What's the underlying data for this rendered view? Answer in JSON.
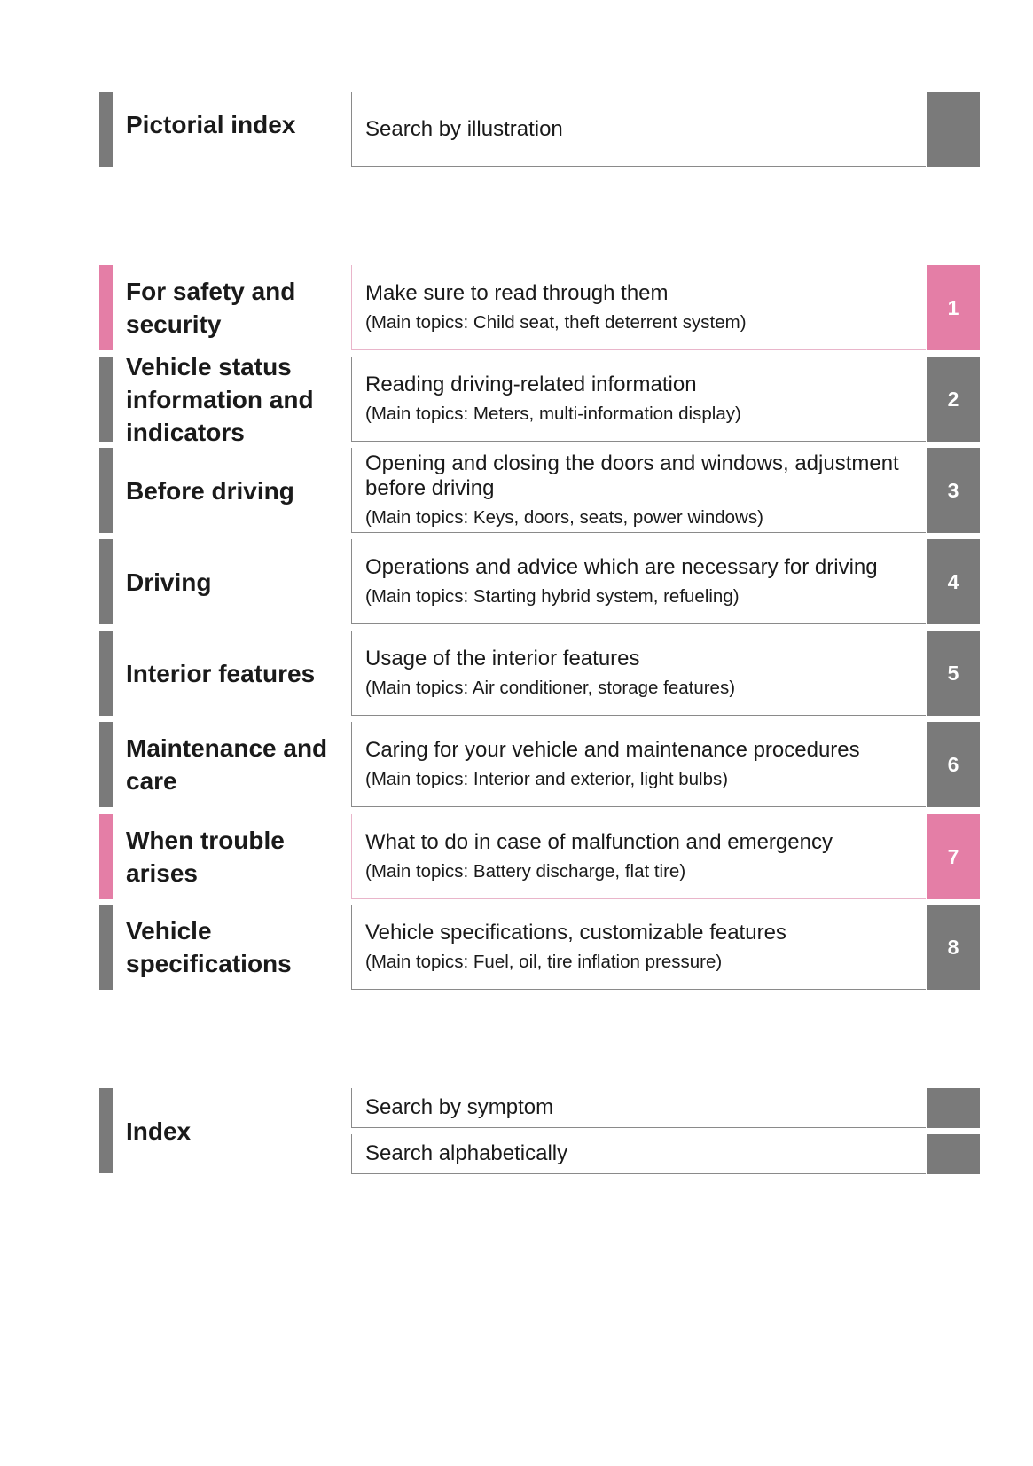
{
  "colors": {
    "gray": "#7a7a7a",
    "pink": "#e47ea6"
  },
  "pictorial": {
    "title": "Pictorial index",
    "description": "Search by illustration"
  },
  "chapters": [
    {
      "number": "1",
      "title": "For safety and security",
      "description": "Make sure to read through them",
      "topics": "(Main topics: Child seat, theft deterrent system)",
      "color": "pink"
    },
    {
      "number": "2",
      "title": "Vehicle status information and indicators",
      "description": "Reading driving-related information",
      "topics": "(Main topics: Meters, multi-information display)",
      "color": "gray"
    },
    {
      "number": "3",
      "title": "Before driving",
      "description": "Opening and closing the doors and windows, adjustment before driving",
      "topics": "(Main topics: Keys, doors, seats, power windows)",
      "color": "gray"
    },
    {
      "number": "4",
      "title": "Driving",
      "description": "Operations and advice which are necessary for driving",
      "topics": "(Main topics: Starting hybrid system, refueling)",
      "color": "gray"
    },
    {
      "number": "5",
      "title": "Interior features",
      "description": "Usage of the interior features",
      "topics": "(Main topics: Air conditioner, storage features)",
      "color": "gray"
    },
    {
      "number": "6",
      "title": "Maintenance and care",
      "description": "Caring for your vehicle and maintenance procedures",
      "topics": "(Main topics: Interior and exterior, light bulbs)",
      "color": "gray"
    },
    {
      "number": "7",
      "title": "When trouble arises",
      "description": "What to do in case of malfunction and emergency",
      "topics": "(Main topics: Battery discharge, flat tire)",
      "color": "pink"
    },
    {
      "number": "8",
      "title": "Vehicle specifications",
      "description": "Vehicle specifications, customizable features",
      "topics": "(Main topics: Fuel, oil, tire inflation pressure)",
      "color": "gray"
    }
  ],
  "index": {
    "title": "Index",
    "items": [
      "Search by symptom",
      "Search alphabetically"
    ]
  }
}
